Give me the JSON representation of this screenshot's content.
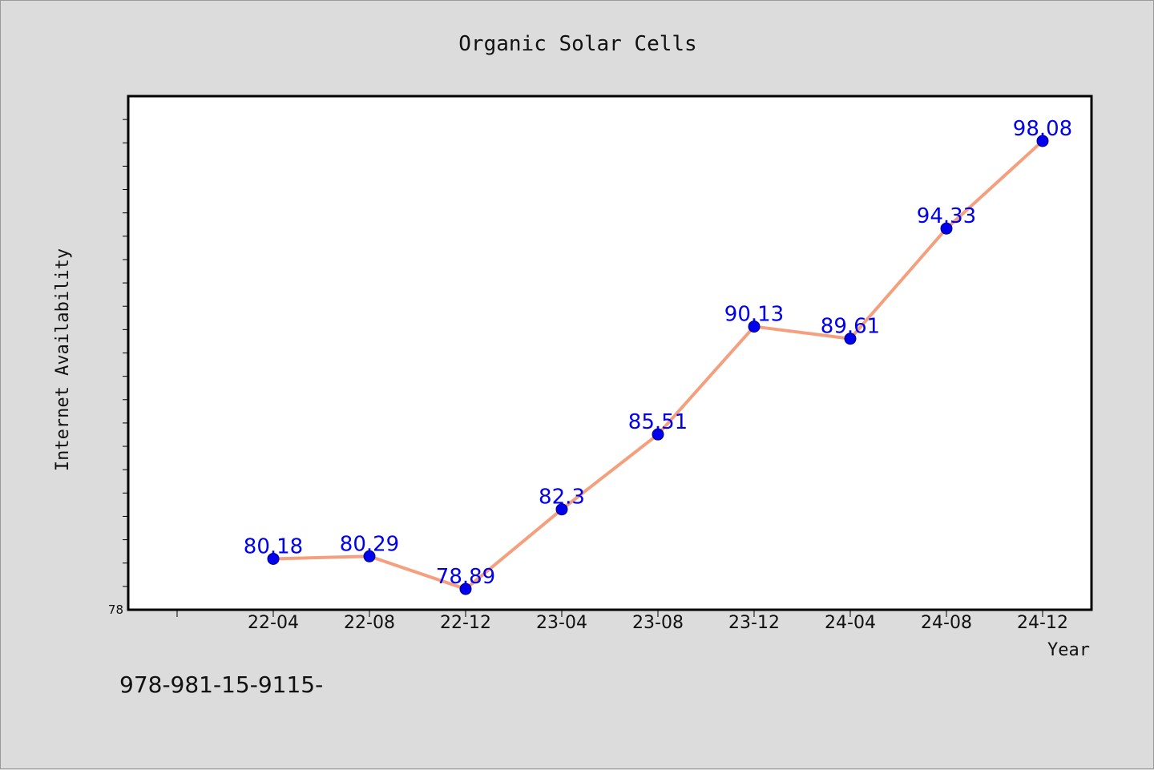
{
  "chart_data": {
    "type": "line",
    "title": "Organic Solar Cells",
    "xlabel": "Year",
    "ylabel": "Internet Availability",
    "categories": [
      "22-04",
      "22-08",
      "22-12",
      "23-04",
      "23-08",
      "23-12",
      "24-04",
      "24-08",
      "24-12"
    ],
    "series": [
      {
        "values": [
          80.18,
          80.29,
          78.89,
          82.3,
          85.51,
          90.13,
          89.61,
          94.33,
          98.08
        ]
      }
    ],
    "data_labels": [
      "80.18",
      "80.29",
      "78.89",
      "82.3",
      "85.51",
      "90.13",
      "89.61",
      "94.33",
      "98.08"
    ],
    "ylim": [
      78,
      100
    ],
    "y_tick_label": "78",
    "grid": false,
    "line_color": "#f4a07e",
    "marker_color": "#0000ee"
  },
  "footer_text": "978-981-15-9115-"
}
